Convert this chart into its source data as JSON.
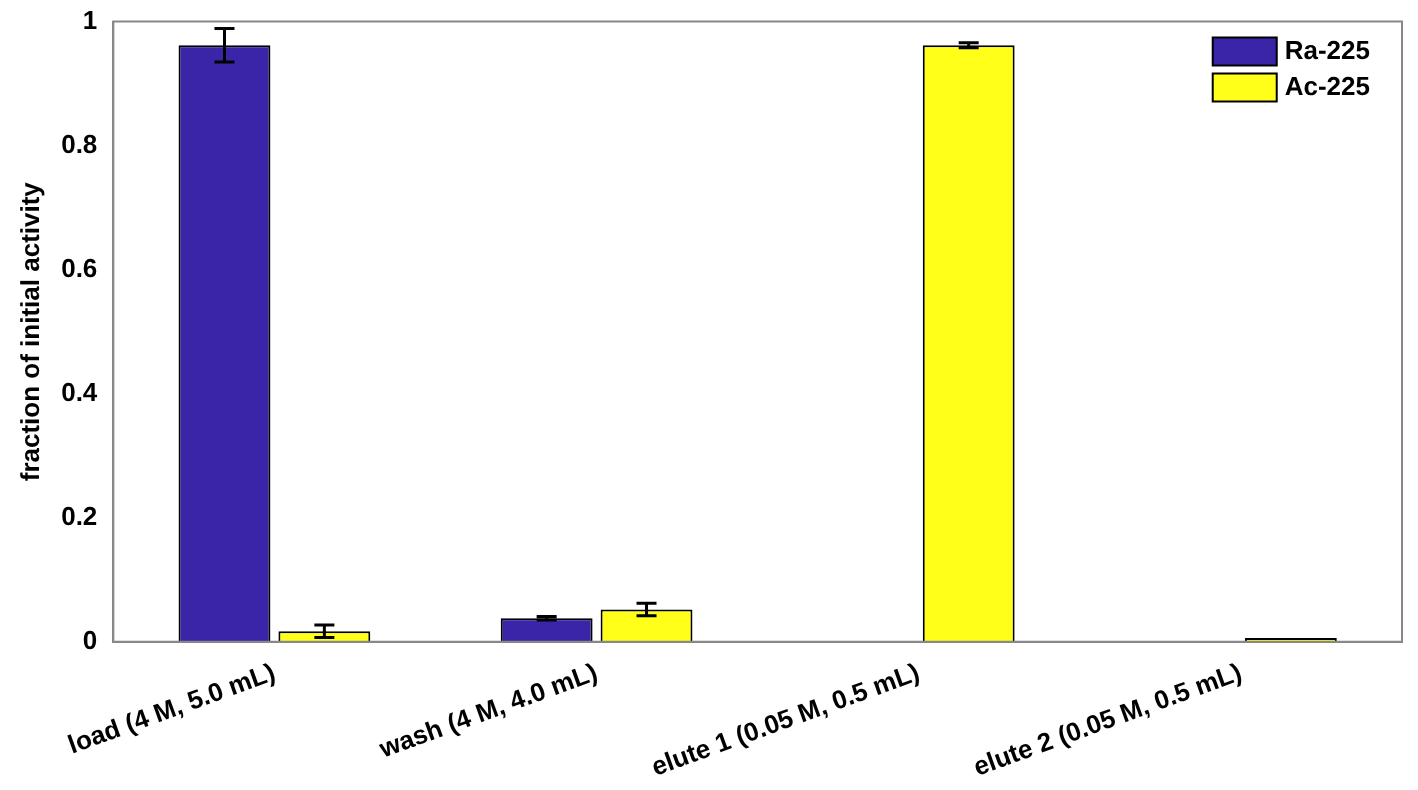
{
  "chart_data": {
    "type": "bar",
    "ylabel": "fraction of initial activity",
    "categories": [
      "load (4 M, 5.0 mL)",
      "wash (4 M, 4.0 mL)",
      "elute 1 (0.05 M, 0.5 mL)",
      "elute 2 (0.05 M, 0.5 mL)"
    ],
    "series": [
      {
        "name": "Ra-225",
        "color": "#3a24a8",
        "values": [
          0.962,
          0.038,
          0.001,
          0.001
        ],
        "errors": [
          0.027,
          0.003,
          null,
          null
        ]
      },
      {
        "name": "Ac-225",
        "color": "#ffff1a",
        "values": [
          0.017,
          0.052,
          0.962,
          0.006
        ],
        "errors": [
          0.01,
          0.01,
          0.004,
          null
        ]
      }
    ],
    "ylim": [
      0,
      1
    ],
    "yticks": [
      0,
      0.2,
      0.4,
      0.6,
      0.8,
      1
    ],
    "grid": false,
    "legend": "top right"
  }
}
